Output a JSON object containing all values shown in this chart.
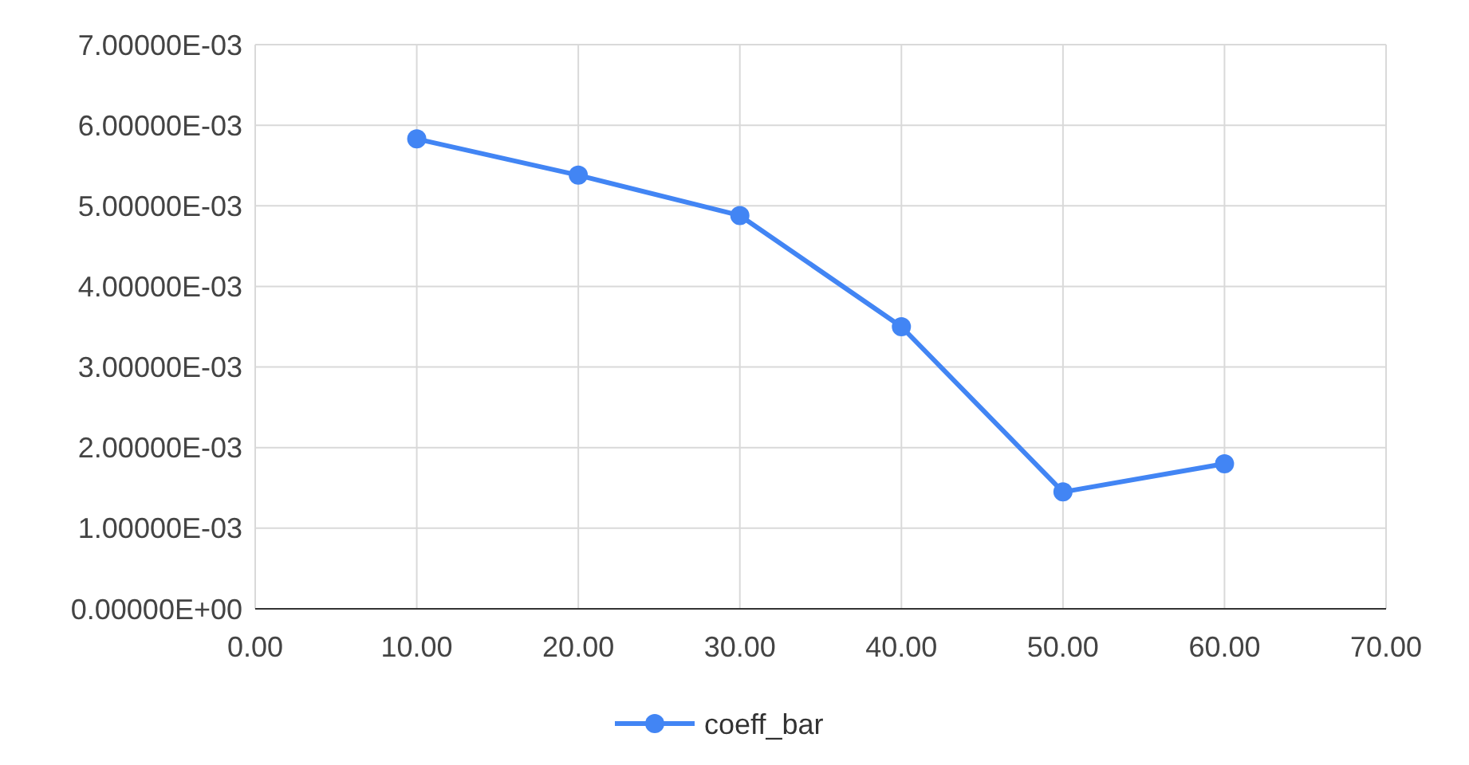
{
  "chart_data": {
    "type": "line",
    "x": [
      10,
      20,
      30,
      40,
      50,
      60
    ],
    "series": [
      {
        "name": "coeff_bar",
        "color": "#4285f4",
        "values": [
          0.00583,
          0.00538,
          0.00488,
          0.0035,
          0.00145,
          0.0018
        ]
      }
    ],
    "xlim": [
      0,
      70
    ],
    "xticks": [
      {
        "value": 0,
        "label": "0.00"
      },
      {
        "value": 10,
        "label": "10.00"
      },
      {
        "value": 20,
        "label": "20.00"
      },
      {
        "value": 30,
        "label": "30.00"
      },
      {
        "value": 40,
        "label": "40.00"
      },
      {
        "value": 50,
        "label": "50.00"
      },
      {
        "value": 60,
        "label": "60.00"
      },
      {
        "value": 70,
        "label": "70.00"
      }
    ],
    "ylim": [
      0,
      0.007
    ],
    "yticks": [
      {
        "value": 0,
        "label": "0.00000E+00"
      },
      {
        "value": 0.001,
        "label": "1.00000E-03"
      },
      {
        "value": 0.002,
        "label": "2.00000E-03"
      },
      {
        "value": 0.003,
        "label": "3.00000E-03"
      },
      {
        "value": 0.004,
        "label": "4.00000E-03"
      },
      {
        "value": 0.005,
        "label": "5.00000E-03"
      },
      {
        "value": 0.006,
        "label": "6.00000E-03"
      },
      {
        "value": 0.007,
        "label": "7.00000E-03"
      }
    ],
    "grid": true,
    "legend": "bottom",
    "marker": "circle",
    "line_style": "solid"
  }
}
